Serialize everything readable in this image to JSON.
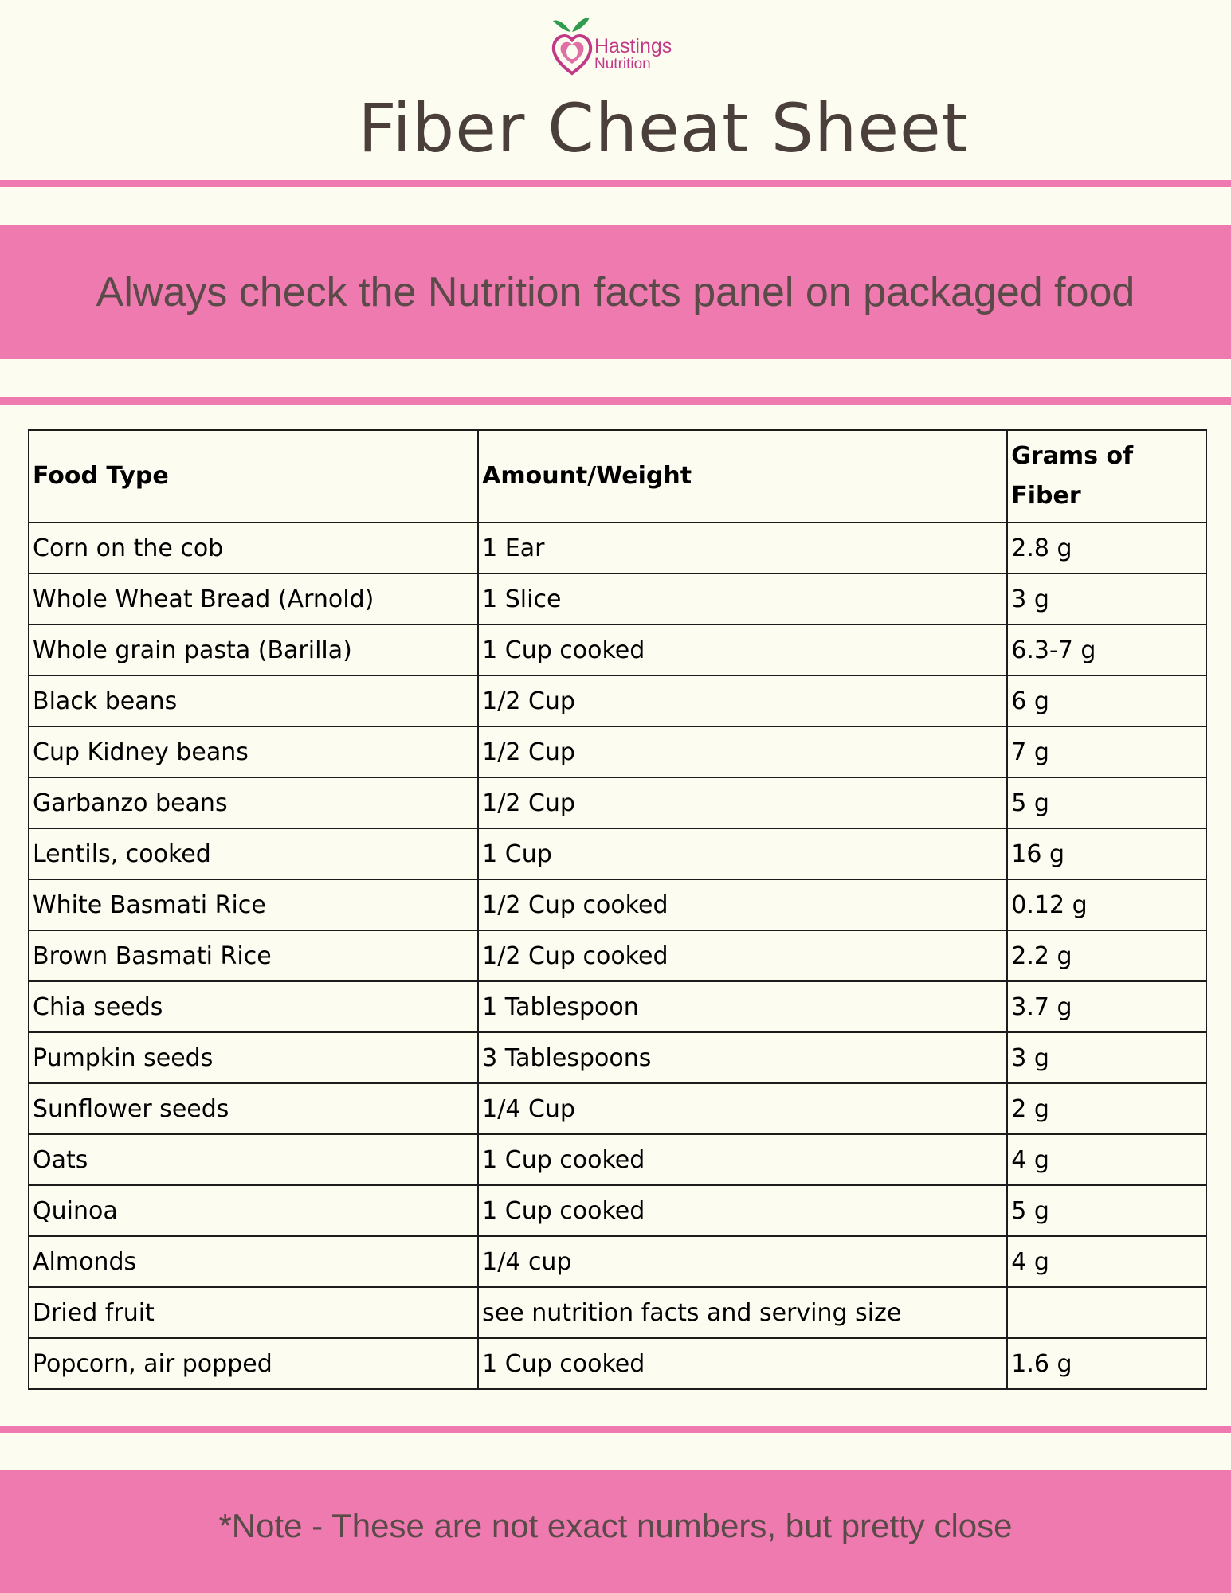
{
  "brand": {
    "line1": "Hastings",
    "line2": "Nutrition",
    "colors": {
      "primary": "#c13a87",
      "leaf": "#2e9b4e"
    }
  },
  "title": "Fiber Cheat Sheet",
  "banner_top": "Always check the Nutrition facts panel on packaged food",
  "table": {
    "headers": [
      "Food Type",
      "Amount/Weight",
      "Grams of Fiber"
    ],
    "rows": [
      [
        "Corn on the cob",
        "1 Ear",
        "2.8 g"
      ],
      [
        "Whole Wheat Bread (Arnold)",
        "1 Slice",
        "3 g"
      ],
      [
        "Whole grain pasta (Barilla)",
        "1 Cup cooked",
        "6.3-7 g"
      ],
      [
        "Black beans",
        "1/2 Cup",
        "6 g"
      ],
      [
        "Cup Kidney beans",
        "1/2 Cup",
        "7 g"
      ],
      [
        "Garbanzo beans",
        "1/2 Cup",
        "5 g"
      ],
      [
        "Lentils, cooked",
        "1 Cup",
        "16 g"
      ],
      [
        "White Basmati Rice",
        "1/2 Cup cooked",
        "0.12 g"
      ],
      [
        "Brown Basmati Rice",
        "1/2 Cup cooked",
        "2.2 g"
      ],
      [
        "Chia seeds",
        "1 Tablespoon",
        "3.7 g"
      ],
      [
        "Pumpkin seeds",
        "3 Tablespoons",
        "3 g"
      ],
      [
        "Sunflower seeds",
        "1/4 Cup",
        "2 g"
      ],
      [
        "Oats",
        "1 Cup cooked",
        "4 g"
      ],
      [
        "Quinoa",
        "1 Cup cooked",
        "5 g"
      ],
      [
        "Almonds",
        "1/4 cup",
        "4 g"
      ],
      [
        "Dried fruit",
        "see nutrition facts and serving size",
        ""
      ],
      [
        "Popcorn, air popped",
        "1 Cup cooked",
        "1.6 g"
      ]
    ]
  },
  "banner_bottom": "*Note - These are not exact numbers, but pretty close",
  "colors": {
    "accent": "#ee7ab0",
    "background": "#fdfcf1",
    "title_text": "#4b3f3b",
    "banner_text": "#5a4a48"
  }
}
